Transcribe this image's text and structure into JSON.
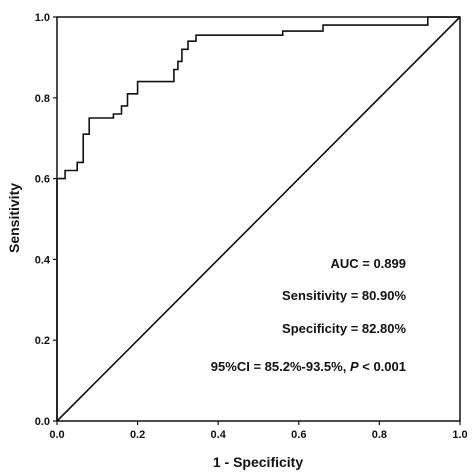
{
  "chart_data": {
    "type": "line",
    "title": "",
    "xlabel": "1 - Specificity",
    "ylabel": "Sensitivity",
    "xlim": [
      0,
      1
    ],
    "ylim": [
      0,
      1
    ],
    "xticks": [
      "0.0",
      "0.2",
      "0.4",
      "0.6",
      "0.8",
      "1.0"
    ],
    "yticks": [
      "0.0",
      "0.2",
      "0.4",
      "0.6",
      "0.8",
      "1.0"
    ],
    "grid": false,
    "legend": "none",
    "line_color": "#111111",
    "series": [
      {
        "x": [
          0,
          0,
          0.02,
          0.02,
          0.05,
          0.05,
          0.065,
          0.065,
          0.08,
          0.08,
          0.14,
          0.14,
          0.16,
          0.16,
          0.175,
          0.175,
          0.2,
          0.2,
          0.29,
          0.29,
          0.3,
          0.3,
          0.31,
          0.31,
          0.325,
          0.325,
          0.345,
          0.345,
          0.56,
          0.56,
          0.66,
          0.66,
          0.92,
          0.92,
          1.0
        ],
        "y": [
          0,
          0.6,
          0.6,
          0.62,
          0.62,
          0.64,
          0.64,
          0.71,
          0.71,
          0.75,
          0.75,
          0.76,
          0.76,
          0.78,
          0.78,
          0.81,
          0.81,
          0.84,
          0.84,
          0.87,
          0.87,
          0.89,
          0.89,
          0.92,
          0.92,
          0.94,
          0.94,
          0.955,
          0.955,
          0.965,
          0.965,
          0.98,
          0.98,
          1.0,
          1.0
        ]
      },
      {
        "x": [
          0,
          1
        ],
        "y": [
          0,
          1
        ]
      }
    ],
    "annotations": [
      {
        "label": "AUC",
        "value": "0.899"
      },
      {
        "label": "Sensitivity",
        "value": "80.90%"
      },
      {
        "label": "Specificity",
        "value": "82.80%"
      },
      {
        "label": "95%CI",
        "value": "85.2%-93.5%",
        "p_label": "P",
        "p_value": "< 0.001"
      }
    ]
  }
}
